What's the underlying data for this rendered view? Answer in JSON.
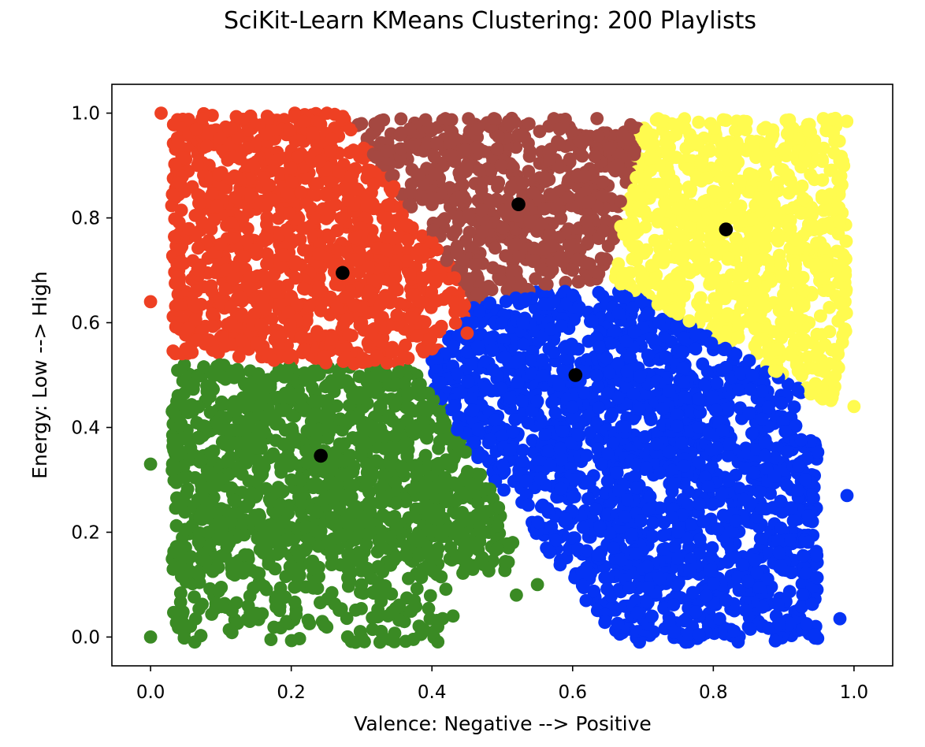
{
  "chart_data": {
    "type": "scatter",
    "title": "SciKit-Learn KMeans Clustering: 200 Playlists",
    "xlabel": "Valence: Negative --> Positive",
    "ylabel": "Energy: Low --> High",
    "xlim": [
      -0.055,
      1.055
    ],
    "ylim": [
      -0.055,
      1.055
    ],
    "xticks": [
      "0.0",
      "0.2",
      "0.4",
      "0.6",
      "0.8",
      "1.0"
    ],
    "yticks": [
      "0.0",
      "0.2",
      "0.4",
      "0.6",
      "0.8",
      "1.0"
    ],
    "grid": false,
    "legend": "none",
    "colors": {
      "red": "#ee4023",
      "brown": "#a54841",
      "yellow": "#fffb4f",
      "blue": "#0533f5",
      "green": "#3a8a24",
      "centroid": "#000000"
    },
    "series": [
      {
        "color": "red",
        "x_range": [
          0.0,
          0.45
        ],
        "y_range": [
          0.52,
          1.0
        ],
        "description_points": [
          [
            0.0,
            0.64
          ],
          [
            0.015,
            1.0
          ],
          [
            0.05,
            0.55
          ],
          [
            0.1,
            0.75
          ],
          [
            0.2,
            0.65
          ],
          [
            0.3,
            0.6
          ],
          [
            0.4,
            0.55
          ],
          [
            0.45,
            0.58
          ]
        ]
      },
      {
        "color": "brown",
        "x_range": [
          0.28,
          0.7
        ],
        "y_range": [
          0.63,
          0.99
        ],
        "description_points": [
          [
            0.3,
            0.98
          ],
          [
            0.45,
            0.9
          ],
          [
            0.52,
            0.75
          ],
          [
            0.6,
            0.7
          ],
          [
            0.68,
            0.95
          ]
        ]
      },
      {
        "color": "yellow",
        "x_range": [
          0.67,
          1.0
        ],
        "y_range": [
          0.44,
          0.99
        ],
        "description_points": [
          [
            0.7,
            0.95
          ],
          [
            0.8,
            0.7
          ],
          [
            0.9,
            0.6
          ],
          [
            0.95,
            0.55
          ],
          [
            1.0,
            0.44
          ]
        ]
      },
      {
        "color": "blue",
        "x_range": [
          0.4,
          0.99
        ],
        "y_range": [
          0.03,
          0.66
        ],
        "description_points": [
          [
            0.55,
            0.45
          ],
          [
            0.65,
            0.35
          ],
          [
            0.75,
            0.2
          ],
          [
            0.92,
            0.28
          ],
          [
            0.98,
            0.035
          ],
          [
            0.99,
            0.27
          ]
        ]
      },
      {
        "color": "green",
        "x_range": [
          0.0,
          0.56
        ],
        "y_range": [
          0.0,
          0.52
        ],
        "description_points": [
          [
            0.0,
            0.0
          ],
          [
            0.0,
            0.33
          ],
          [
            0.1,
            0.2
          ],
          [
            0.2,
            0.3
          ],
          [
            0.3,
            0.1
          ],
          [
            0.43,
            0.04
          ],
          [
            0.52,
            0.08
          ],
          [
            0.55,
            0.1
          ]
        ]
      }
    ],
    "centroids": [
      {
        "color": "red",
        "x": 0.273,
        "y": 0.695
      },
      {
        "color": "brown",
        "x": 0.523,
        "y": 0.826
      },
      {
        "color": "yellow",
        "x": 0.818,
        "y": 0.778
      },
      {
        "color": "blue",
        "x": 0.604,
        "y": 0.5
      },
      {
        "color": "green",
        "x": 0.242,
        "y": 0.346
      }
    ]
  }
}
